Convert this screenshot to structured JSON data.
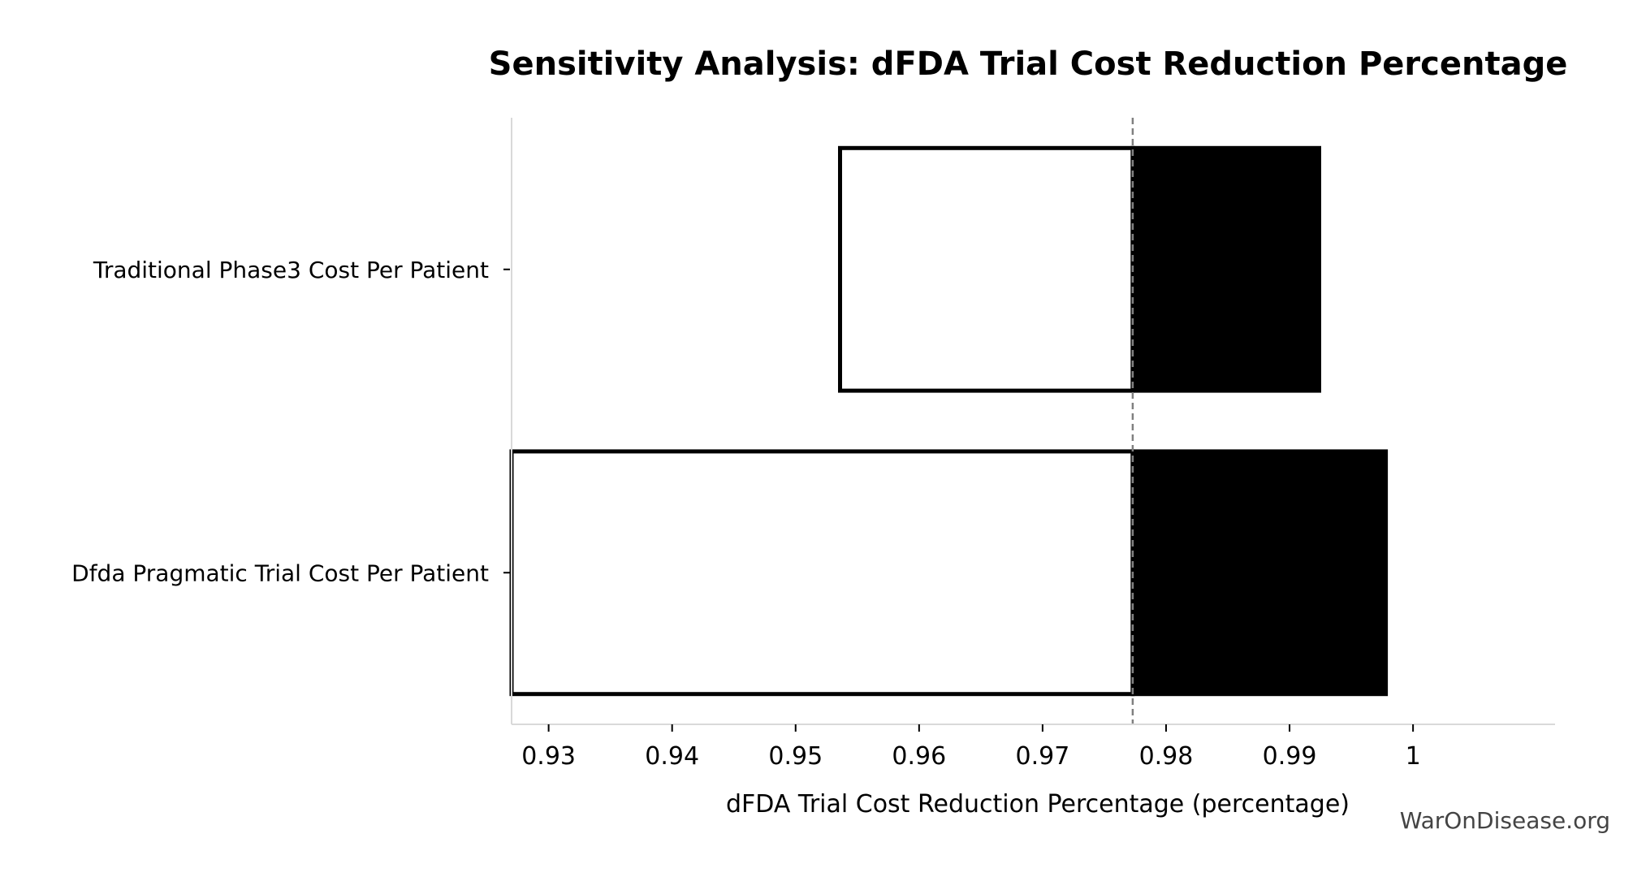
{
  "chart_data": {
    "type": "bar",
    "orientation": "horizontal",
    "chart_style": "tornado",
    "title": "Sensitivity Analysis: dFDA Trial Cost Reduction Percentage",
    "xlabel": "dFDA Trial Cost Reduction Percentage (percentage)",
    "ylabel": "",
    "xlim": [
      0.927,
      1.0115
    ],
    "baseline": 0.9773,
    "x_ticks": [
      0.93,
      0.94,
      0.95,
      0.96,
      0.97,
      0.98,
      0.99,
      1
    ],
    "x_tick_labels": [
      "0.93",
      "0.94",
      "0.95",
      "0.96",
      "0.97",
      "0.98",
      "0.99",
      "1"
    ],
    "categories": [
      "Traditional Phase3 Cost Per Patient",
      "Dfda Pragmatic Trial Cost Per Patient"
    ],
    "series": [
      {
        "values": [
          0.9536,
          0.927
        ],
        "color": "#ffffff",
        "outline": "#000000"
      },
      {
        "values": [
          0.9924,
          0.9978
        ],
        "color": "#000000",
        "outline": "#000000"
      }
    ],
    "grid": false,
    "legend": "none"
  },
  "watermark": "WarOnDisease.org"
}
